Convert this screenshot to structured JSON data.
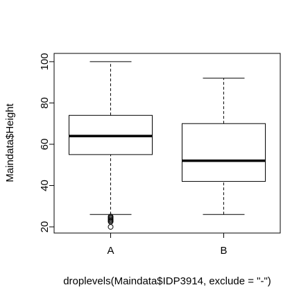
{
  "chart_data": {
    "type": "boxplot",
    "title": "",
    "xlabel": "droplevels(Maindata$IDP3914, exclude = \"-\")",
    "ylabel": "Maindata$Height",
    "ylim": [
      17,
      104
    ],
    "yticks": [
      20,
      40,
      60,
      80,
      100
    ],
    "grid": false,
    "categories": [
      "A",
      "B"
    ],
    "boxes": [
      {
        "category": "A",
        "whisker_low": 26,
        "q1": 55,
        "median": 64,
        "q3": 74,
        "whisker_high": 100,
        "outliers": [
          20,
          22.5,
          23,
          23.5,
          24,
          24.5,
          25
        ]
      },
      {
        "category": "B",
        "whisker_low": 26,
        "q1": 42,
        "median": 52,
        "q3": 70,
        "whisker_high": 92,
        "outliers": []
      }
    ]
  }
}
